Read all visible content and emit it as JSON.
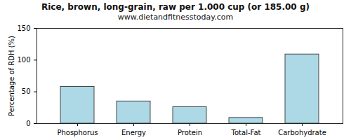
{
  "chart_data": {
    "type": "bar",
    "title": "Rice, brown, long-grain, raw per 1.000 cup (or 185.00 g)",
    "subtitle": "www.dietandfitnesstoday.com",
    "categories": [
      "Phosphorus",
      "Energy",
      "Protein",
      "Total-Fat",
      "Carbohydrate"
    ],
    "values": [
      58,
      35,
      26,
      9,
      109
    ],
    "color": "#add8e6",
    "ylabel": "Percentage of RDH (%)",
    "ylim": [
      0,
      150
    ],
    "yticks": [
      0,
      50,
      100,
      150
    ],
    "grid": false
  }
}
